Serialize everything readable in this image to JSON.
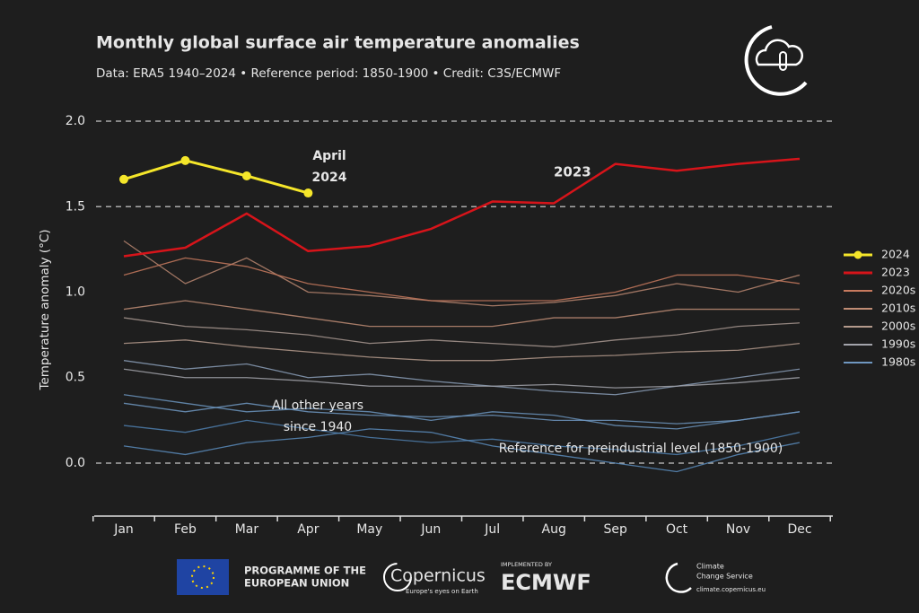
{
  "chart_data": {
    "type": "line",
    "title": "Monthly global surface air temperature anomalies",
    "subtitle": "Data: ERA5 1940–2024 • Reference period: 1850-1900 • Credit: C3S/ECMWF",
    "y_label": "Temperature anomaly (°C)",
    "categories": [
      "Jan",
      "Feb",
      "Mar",
      "Apr",
      "May",
      "Jun",
      "Jul",
      "Aug",
      "Sep",
      "Oct",
      "Nov",
      "Dec"
    ],
    "ylim": [
      -0.31,
      2.1
    ],
    "yticks": [
      {
        "value": 0,
        "label": "0.0"
      },
      0.5,
      {
        "value": 1,
        "label": "1.0"
      },
      1.5,
      {
        "value": 2,
        "label": "2.0"
      }
    ],
    "dashed_lines": [
      0,
      1.5,
      2
    ],
    "series": [
      {
        "color": "#4f7fae",
        "values": [
          0.22,
          0.18,
          0.25,
          0.2,
          0.15,
          0.12,
          0.14,
          0.1,
          0.08,
          0.05,
          0.1,
          0.18
        ]
      },
      {
        "color": "#5a8cbc",
        "values": [
          0.1,
          0.05,
          0.12,
          0.15,
          0.2,
          0.18,
          0.1,
          0.05,
          0.0,
          -0.05,
          0.05,
          0.12
        ]
      },
      {
        "color": "#6b94bd",
        "values": [
          0.4,
          0.35,
          0.3,
          0.32,
          0.3,
          0.25,
          0.3,
          0.28,
          0.22,
          0.2,
          0.25,
          0.3
        ]
      },
      {
        "color": "#8b9fb8",
        "values": [
          0.6,
          0.55,
          0.58,
          0.5,
          0.52,
          0.48,
          0.45,
          0.42,
          0.4,
          0.45,
          0.5,
          0.55
        ]
      },
      {
        "color": "#a89890",
        "values": [
          0.85,
          0.8,
          0.78,
          0.75,
          0.7,
          0.72,
          0.7,
          0.68,
          0.72,
          0.75,
          0.8,
          0.82
        ]
      },
      {
        "color": "#b98670",
        "values": [
          1.3,
          1.05,
          1.2,
          1.0,
          0.98,
          0.95,
          0.92,
          0.94,
          0.98,
          1.05,
          1.0,
          1.1
        ]
      },
      {
        "name": "1980s",
        "color": "#6f97c0",
        "values": [
          0.35,
          0.3,
          0.35,
          0.3,
          0.28,
          0.27,
          0.28,
          0.25,
          0.25,
          0.23,
          0.25,
          0.3
        ]
      },
      {
        "name": "1990s",
        "color": "#a3a4ab",
        "values": [
          0.55,
          0.5,
          0.5,
          0.48,
          0.45,
          0.45,
          0.45,
          0.46,
          0.44,
          0.45,
          0.47,
          0.5
        ]
      },
      {
        "name": "2000s",
        "color": "#b49a8c",
        "values": [
          0.7,
          0.72,
          0.68,
          0.65,
          0.62,
          0.6,
          0.6,
          0.62,
          0.63,
          0.65,
          0.66,
          0.7
        ]
      },
      {
        "name": "2010s",
        "color": "#c08d75",
        "values": [
          0.9,
          0.95,
          0.9,
          0.85,
          0.8,
          0.8,
          0.8,
          0.85,
          0.85,
          0.9,
          0.9,
          0.9
        ]
      },
      {
        "name": "2020s",
        "color": "#c87a5e",
        "values": [
          1.1,
          1.2,
          1.15,
          1.05,
          1.0,
          0.95,
          0.95,
          0.95,
          1.0,
          1.1,
          1.1,
          1.05
        ]
      },
      {
        "name": "2023",
        "color": "#d7141a",
        "values": [
          1.21,
          1.26,
          1.46,
          1.24,
          1.27,
          1.37,
          1.53,
          1.52,
          1.75,
          1.71,
          1.75,
          1.78
        ]
      },
      {
        "name": "2024",
        "color": "#f5e62a",
        "values": [
          1.66,
          1.77,
          1.68,
          1.58,
          null,
          null,
          null,
          null,
          null,
          null,
          null,
          null
        ],
        "markers": true
      }
    ],
    "annotations": [
      {
        "lines": [
          "April",
          "2024"
        ]
      },
      {
        "lines": [
          "2023"
        ]
      },
      {
        "lines": [
          "All other years",
          "since 1940"
        ]
      },
      {
        "lines": [
          "Reference for preindustrial level (1850-1900)"
        ]
      }
    ]
  },
  "footer": {
    "eu": [
      "PROGRAMME OF THE",
      "EUROPEAN UNION"
    ],
    "copernicus": "Copernicus",
    "copernicus_tagline": "Europe's eyes on Earth",
    "implemented_by": "IMPLEMENTED BY",
    "ecmwf": "ECMWF",
    "c3s": [
      "Climate",
      "Change Service"
    ],
    "c3s_url": "climate.copernicus.eu"
  }
}
